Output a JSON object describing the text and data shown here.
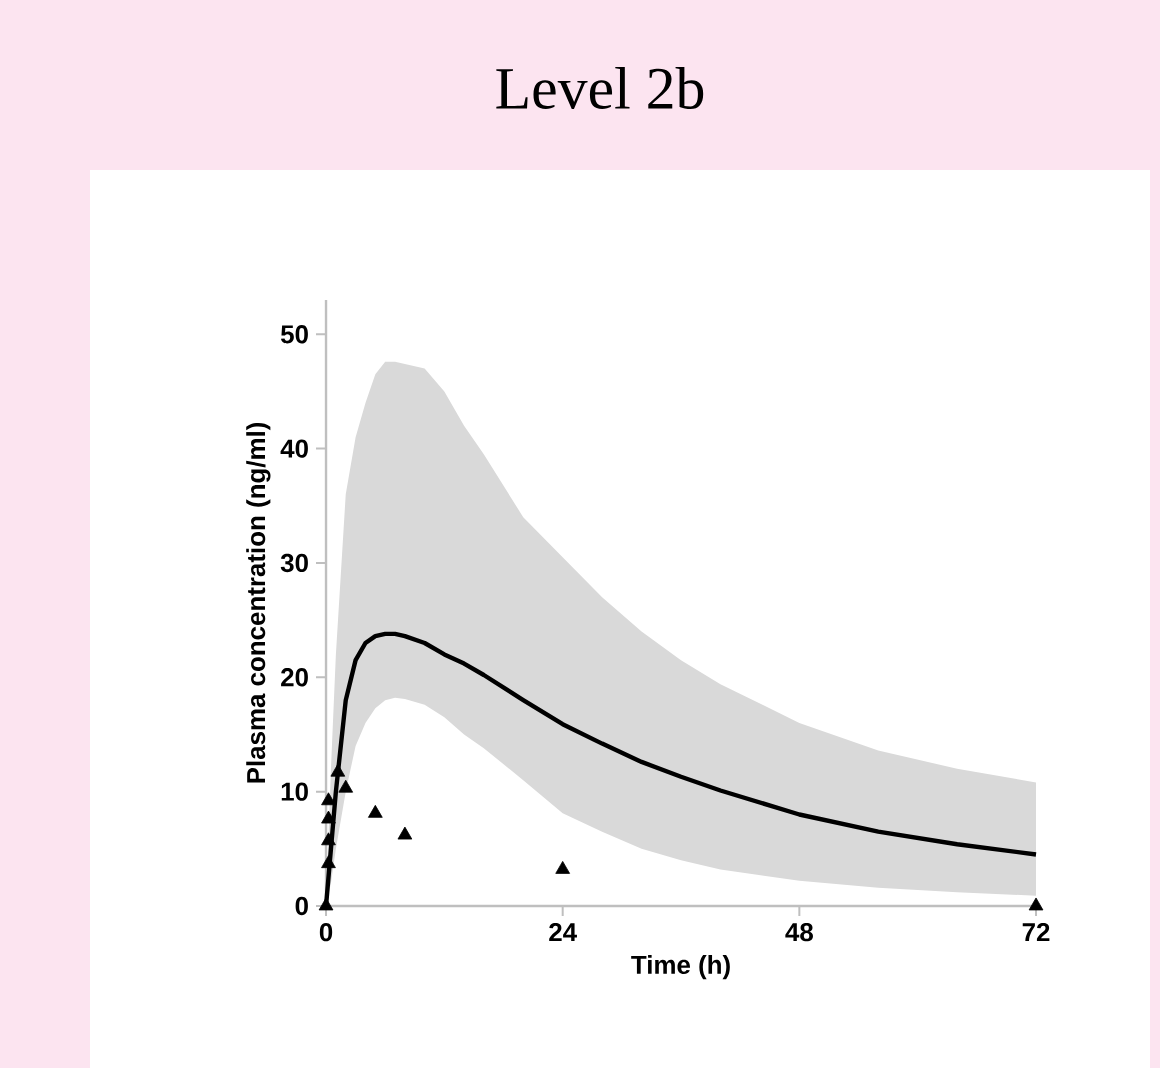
{
  "chart_data": {
    "type": "line",
    "title": "Level 2b",
    "xlabel": "Time (h)",
    "ylabel": "Plasma concentration (ng/ml)",
    "xlim": [
      0,
      72
    ],
    "xticks": [
      0,
      24,
      48,
      72
    ],
    "ylim": [
      0,
      53
    ],
    "yticks": [
      0,
      10,
      20,
      30,
      40,
      50
    ],
    "series": [
      {
        "color": "#000000",
        "x": [
          0,
          0.5,
          1,
          2,
          3,
          4,
          5,
          6,
          7,
          8,
          10,
          12,
          14,
          16,
          20,
          24,
          28,
          32,
          36,
          40,
          48,
          56,
          64,
          72
        ],
        "values": [
          0,
          5,
          10,
          18,
          21.5,
          23,
          23.6,
          23.8,
          23.8,
          23.6,
          23,
          22,
          21.2,
          20.2,
          18,
          15.9,
          14.2,
          12.6,
          11.3,
          10.1,
          8,
          6.5,
          5.4,
          4.5
        ],
        "lower": [
          0,
          2,
          5,
          10,
          14,
          16,
          17.3,
          18,
          18.2,
          18.1,
          17.6,
          16.5,
          15,
          13.8,
          11,
          8.1,
          6.5,
          5,
          4,
          3.2,
          2.2,
          1.6,
          1.2,
          0.9
        ],
        "upper": [
          0,
          12,
          22,
          36,
          41,
          44,
          46.5,
          47.6,
          47.6,
          47.4,
          47,
          45,
          42,
          39.5,
          34,
          30.5,
          27,
          24,
          21.5,
          19.4,
          16,
          13.6,
          12,
          10.8
        ]
      },
      {
        "type": "scatter",
        "marker": "triangle",
        "color": "#000000",
        "x": [
          0,
          0.25,
          0.25,
          0.25,
          0.25,
          1.2,
          2,
          5,
          8,
          24,
          72
        ],
        "values": [
          0,
          3.7,
          5.7,
          7.6,
          9.2,
          11.7,
          10.3,
          8.1,
          6.2,
          3.2,
          0
        ]
      }
    ]
  }
}
